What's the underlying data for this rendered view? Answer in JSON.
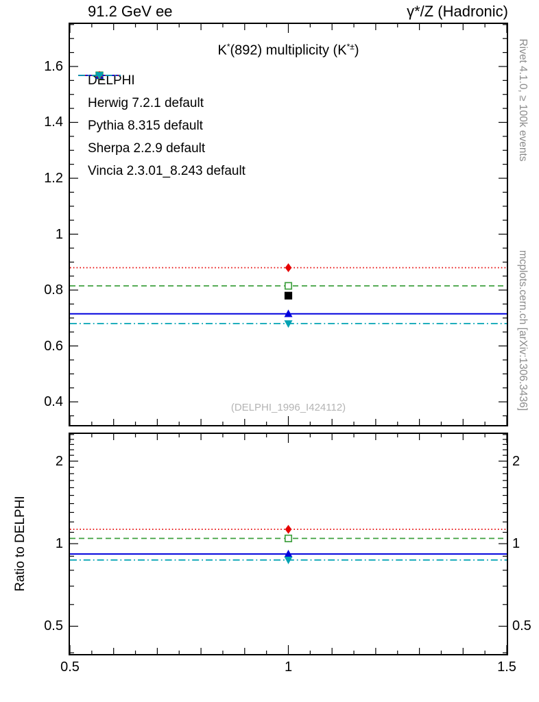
{
  "header": {
    "left": "91.2 GeV ee",
    "right": "γ*/Z (Hadronic)"
  },
  "side_labels": {
    "top": "Rivet 4.1.0, ≥ 100k events",
    "bottom": "mcplots.cern.ch [arXiv:1306.3436]"
  },
  "watermark": "(DELPHI_1996_I424112)",
  "chart_data": {
    "type": "line",
    "title": "K*(892) multiplicity (K*±)",
    "title_segments": [
      {
        "text": "K"
      },
      {
        "text": "*",
        "sup": true
      },
      {
        "text": "(892) multiplicity (K"
      },
      {
        "text": "*±",
        "sup": true
      },
      {
        "text": ")"
      }
    ],
    "xlim": [
      0.5,
      1.5
    ],
    "x_point": 1.0,
    "x_axis": {
      "major": [
        0.5,
        1.0,
        1.5
      ],
      "labels": [
        "0.5",
        "1",
        "1.5"
      ]
    },
    "main_panel": {
      "scale": "linear",
      "ylim": [
        0.317,
        1.752
      ],
      "major": [
        0.4,
        0.6,
        0.8,
        1.0,
        1.2,
        1.4,
        1.6
      ],
      "labels": [
        "0.4",
        "0.6",
        "0.8",
        "1",
        "1.2",
        "1.4",
        "1.6"
      ]
    },
    "ratio_panel": {
      "scale": "log",
      "ylim": [
        0.396,
        2.512
      ],
      "ylabel": "Ratio to DELPHI",
      "major": [
        0.5,
        1.0,
        2.0
      ],
      "labels": [
        "0.5",
        "1",
        "2"
      ]
    },
    "series": [
      {
        "label": "DELPHI",
        "color": "#000000",
        "line": "none",
        "marker": "square",
        "y": 0.78,
        "ratio": null
      },
      {
        "label": "Herwig 7.2.1 default",
        "color": "#3fa03f",
        "line": "dashed",
        "marker": "square-open",
        "y": 0.815,
        "ratio": 1.045
      },
      {
        "label": "Pythia 8.315 default",
        "color": "#0000dd",
        "line": "solid",
        "marker": "triangle-up",
        "y": 0.715,
        "ratio": 0.917
      },
      {
        "label": "Sherpa 2.2.9 default",
        "color": "#e60000",
        "line": "dotted",
        "marker": "diamond",
        "y": 0.88,
        "ratio": 1.128
      },
      {
        "label": "Vincia 2.3.01_8.243 default",
        "color": "#00a2b3",
        "line": "dashdot",
        "marker": "triangle-down",
        "y": 0.68,
        "ratio": 0.872
      }
    ]
  }
}
